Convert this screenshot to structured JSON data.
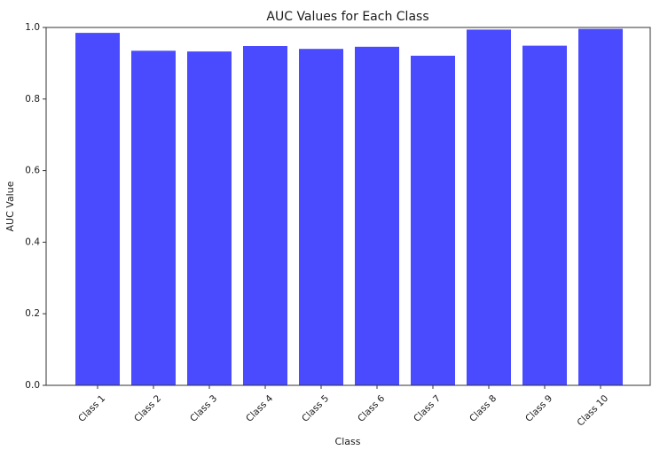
{
  "chart_data": {
    "type": "bar",
    "title": "AUC Values for Each Class",
    "xlabel": "Class",
    "ylabel": "AUC Value",
    "categories": [
      "Class 1",
      "Class 2",
      "Class 3",
      "Class 4",
      "Class 5",
      "Class 6",
      "Class 7",
      "Class 8",
      "Class 9",
      "Class 10"
    ],
    "values": [
      0.985,
      0.935,
      0.933,
      0.948,
      0.94,
      0.946,
      0.921,
      0.994,
      0.949,
      0.996
    ],
    "ylim": [
      0,
      1.0
    ],
    "yticks": [
      "0.0",
      "0.2",
      "0.4",
      "0.6",
      "0.8",
      "1.0"
    ],
    "grid": false,
    "bar_color": "#4a4aff"
  }
}
